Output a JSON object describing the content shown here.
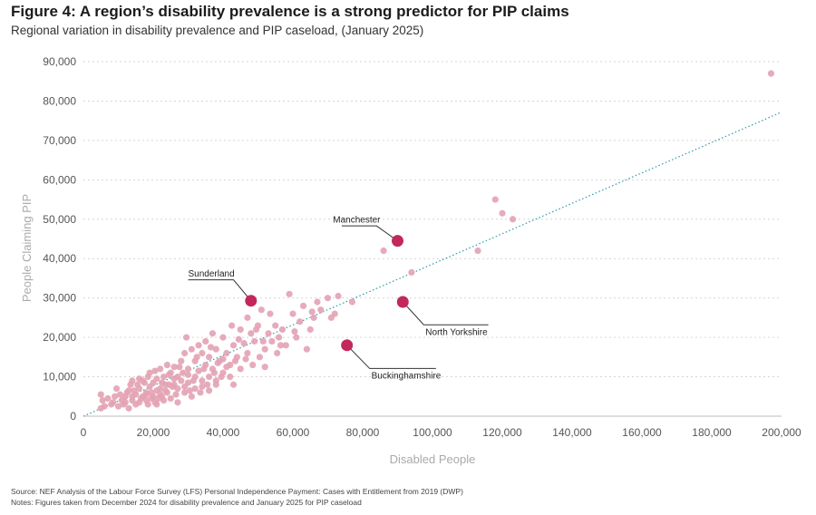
{
  "title": "Figure 4: A region’s disability prevalence is a strong predictor for PIP claims",
  "subtitle": "Regional variation in disability prevalence and PIP caseload, (January 2025)",
  "footer": {
    "source": "Source: NEF Analysis of the Labour Force Survey (LFS) Personal Independence Payment: Cases with Entitlement from 2019 (DWP)",
    "notes": "Notes: Figures taken from December 2024 for disability prevalence and January 2025 for PIP caseload"
  },
  "chart_data": {
    "type": "scatter",
    "xlabel": "Disabled People",
    "ylabel": "People Claiming PIP",
    "xlim": [
      0,
      200000
    ],
    "ylim": [
      0,
      90000
    ],
    "x_ticks": [
      "0",
      "20,000",
      "40,000",
      "60,000",
      "80,000",
      "100,000",
      "120,000",
      "140,000",
      "160,000",
      "180,000",
      "200,000"
    ],
    "y_ticks": [
      "0",
      "10,000",
      "20,000",
      "30,000",
      "40,000",
      "50,000",
      "60,000",
      "70,000",
      "80,000",
      "90,000"
    ],
    "grid": "horizontal dashed",
    "colors": {
      "points": "#e3a2b4",
      "highlight": "#c2285a",
      "trend": "#2e9aa6"
    },
    "trendline": {
      "x": [
        0,
        200000
      ],
      "y": [
        0,
        77200
      ]
    },
    "highlighted": [
      {
        "label": "Manchester",
        "x": 90000,
        "y": 44500
      },
      {
        "label": "Sunderland",
        "x": 48000,
        "y": 29300
      },
      {
        "label": "North Yorkshire",
        "x": 91500,
        "y": 29000
      },
      {
        "label": "Buckinghamshire",
        "x": 75500,
        "y": 18000
      }
    ],
    "points": [
      [
        5000,
        5500
      ],
      [
        5500,
        4000
      ],
      [
        6000,
        2500
      ],
      [
        5000,
        2000
      ],
      [
        8000,
        3000
      ],
      [
        9000,
        5000
      ],
      [
        9500,
        7000
      ],
      [
        10000,
        2500
      ],
      [
        11000,
        4000
      ],
      [
        12000,
        5000
      ],
      [
        12000,
        3500
      ],
      [
        13000,
        6500
      ],
      [
        13500,
        8000
      ],
      [
        14000,
        9000
      ],
      [
        14000,
        4000
      ],
      [
        15000,
        5500
      ],
      [
        15000,
        3000
      ],
      [
        16000,
        7000
      ],
      [
        16000,
        9500
      ],
      [
        17000,
        5000
      ],
      [
        17500,
        8500
      ],
      [
        18000,
        6000
      ],
      [
        18000,
        4000
      ],
      [
        18500,
        10000
      ],
      [
        19000,
        7500
      ],
      [
        19000,
        11000
      ],
      [
        20000,
        5000
      ],
      [
        20000,
        8500
      ],
      [
        20500,
        3500
      ],
      [
        21000,
        6500
      ],
      [
        21000,
        9500
      ],
      [
        22000,
        7000
      ],
      [
        22000,
        12000
      ],
      [
        22500,
        5000
      ],
      [
        23000,
        10000
      ],
      [
        23500,
        8000
      ],
      [
        24000,
        6000
      ],
      [
        24000,
        13000
      ],
      [
        25000,
        11000
      ],
      [
        25000,
        4500
      ],
      [
        26000,
        8000
      ],
      [
        26000,
        12500
      ],
      [
        27000,
        7000
      ],
      [
        27000,
        10000
      ],
      [
        28000,
        14000
      ],
      [
        28000,
        9000
      ],
      [
        29000,
        6000
      ],
      [
        29000,
        16000
      ],
      [
        29500,
        20000
      ],
      [
        30000,
        12000
      ],
      [
        30000,
        8500
      ],
      [
        31000,
        17000
      ],
      [
        31000,
        5000
      ],
      [
        32000,
        10000
      ],
      [
        32000,
        14000
      ],
      [
        33000,
        18000
      ],
      [
        33000,
        11500
      ],
      [
        34000,
        7500
      ],
      [
        34000,
        16000
      ],
      [
        35000,
        13000
      ],
      [
        35000,
        19000
      ],
      [
        36000,
        10000
      ],
      [
        36000,
        15000
      ],
      [
        37000,
        21000
      ],
      [
        37000,
        12000
      ],
      [
        38000,
        17000
      ],
      [
        38000,
        9000
      ],
      [
        39000,
        14000
      ],
      [
        40000,
        20000
      ],
      [
        40000,
        11000
      ],
      [
        41000,
        16000
      ],
      [
        42000,
        13000
      ],
      [
        42500,
        23000
      ],
      [
        43000,
        8000
      ],
      [
        43000,
        18000
      ],
      [
        44000,
        15000
      ],
      [
        45000,
        22000
      ],
      [
        45000,
        12000
      ],
      [
        46000,
        18500
      ],
      [
        47000,
        25000
      ],
      [
        47000,
        16000
      ],
      [
        48000,
        21000
      ],
      [
        48500,
        13000
      ],
      [
        49000,
        19000
      ],
      [
        50000,
        23000
      ],
      [
        50500,
        15000
      ],
      [
        51000,
        27000
      ],
      [
        52000,
        17000
      ],
      [
        52000,
        12500
      ],
      [
        53000,
        21000
      ],
      [
        54000,
        19000
      ],
      [
        55000,
        23000
      ],
      [
        55500,
        16000
      ],
      [
        56000,
        20000
      ],
      [
        57000,
        22000
      ],
      [
        58000,
        18000
      ],
      [
        59000,
        31000
      ],
      [
        60000,
        26000
      ],
      [
        61000,
        20000
      ],
      [
        62000,
        24000
      ],
      [
        63000,
        28000
      ],
      [
        64000,
        17000
      ],
      [
        65000,
        22000
      ],
      [
        66000,
        25000
      ],
      [
        67000,
        29000
      ],
      [
        68000,
        27000
      ],
      [
        70000,
        30000
      ],
      [
        71000,
        25000
      ],
      [
        73000,
        30500
      ],
      [
        77000,
        29000
      ],
      [
        86000,
        42000
      ],
      [
        94000,
        36500
      ],
      [
        113000,
        42000
      ],
      [
        118000,
        55000
      ],
      [
        120000,
        51500
      ],
      [
        123000,
        50000
      ],
      [
        197000,
        87000
      ],
      [
        7000,
        4500
      ],
      [
        10500,
        5500
      ],
      [
        11500,
        3000
      ],
      [
        13000,
        2000
      ],
      [
        14500,
        6500
      ],
      [
        15500,
        8000
      ],
      [
        16500,
        4500
      ],
      [
        17000,
        9000
      ],
      [
        18500,
        3000
      ],
      [
        19500,
        6000
      ],
      [
        20500,
        11500
      ],
      [
        21500,
        4500
      ],
      [
        22500,
        8500
      ],
      [
        23500,
        6500
      ],
      [
        24500,
        10500
      ],
      [
        25500,
        7500
      ],
      [
        26500,
        5500
      ],
      [
        27500,
        12500
      ],
      [
        28500,
        11000
      ],
      [
        30500,
        6500
      ],
      [
        31500,
        9000
      ],
      [
        32500,
        15000
      ],
      [
        33500,
        6000
      ],
      [
        34500,
        12000
      ],
      [
        35500,
        8000
      ],
      [
        36500,
        17500
      ],
      [
        37500,
        11000
      ],
      [
        38500,
        13500
      ],
      [
        39500,
        10000
      ],
      [
        41000,
        12500
      ],
      [
        43500,
        14000
      ],
      [
        44500,
        19500
      ],
      [
        46500,
        14500
      ],
      [
        49500,
        22000
      ],
      [
        51500,
        19000
      ],
      [
        53500,
        26000
      ],
      [
        56500,
        18000
      ],
      [
        60500,
        21500
      ],
      [
        65500,
        26500
      ],
      [
        72000,
        26000
      ],
      [
        8500,
        3500
      ],
      [
        12500,
        6000
      ],
      [
        14000,
        5000
      ],
      [
        16000,
        3500
      ],
      [
        18000,
        5500
      ],
      [
        19500,
        4500
      ],
      [
        21000,
        3000
      ],
      [
        22000,
        5500
      ],
      [
        23000,
        4000
      ],
      [
        24500,
        8000
      ],
      [
        26000,
        9500
      ],
      [
        27000,
        3500
      ],
      [
        29000,
        7500
      ],
      [
        30000,
        10500
      ],
      [
        32000,
        7000
      ],
      [
        34000,
        9000
      ],
      [
        36000,
        6500
      ],
      [
        38000,
        8000
      ],
      [
        40000,
        14500
      ],
      [
        42000,
        10000
      ]
    ]
  }
}
